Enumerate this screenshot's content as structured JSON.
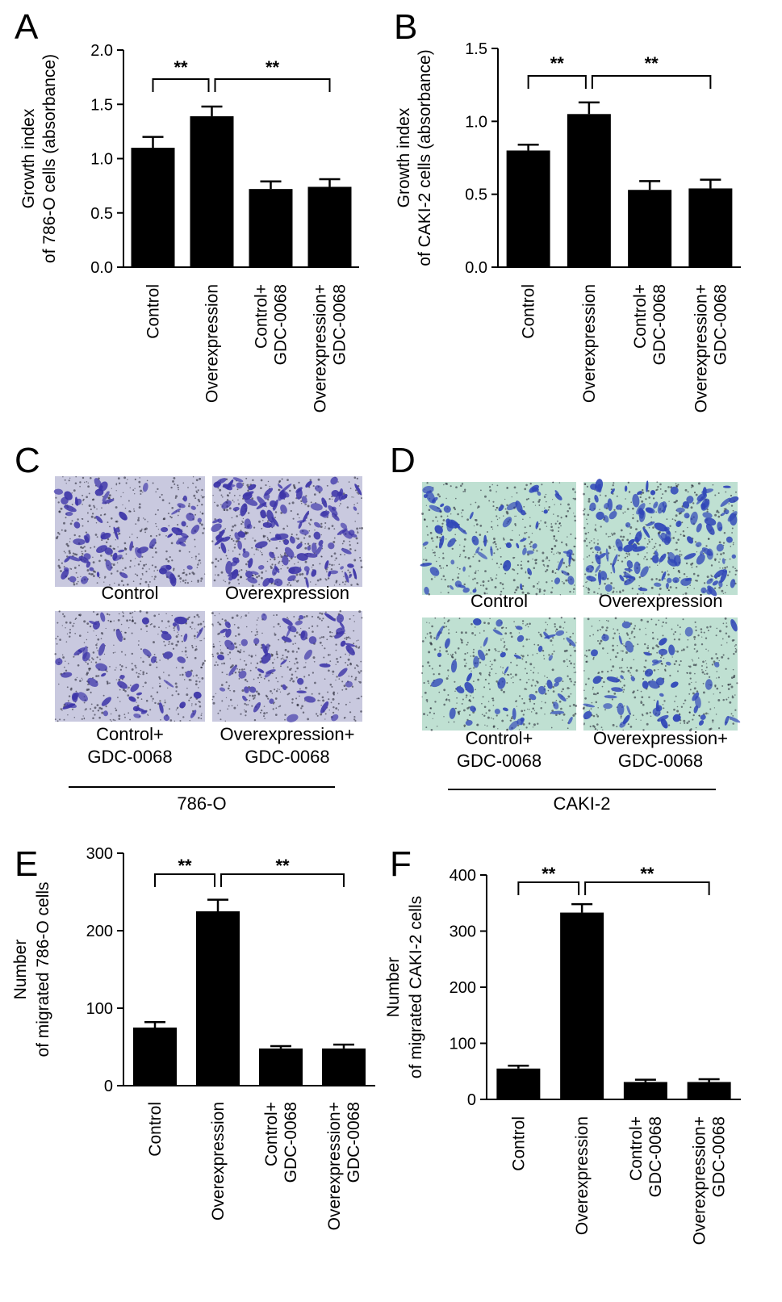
{
  "colors": {
    "bar": "#000000",
    "micro_786O_bg": "#c9c9df",
    "micro_786O_stain": "#3d35a8",
    "micro_CAKI2_bg": "#bfe0d2",
    "micro_CAKI2_stain": "#2f46b8",
    "dots": "#1b1b2a"
  },
  "chart_data": [
    {
      "panel": "A",
      "type": "bar",
      "categories": [
        "Control",
        "Overexpression",
        "Control+\nGDC-0068",
        "Overexpression+\nGDC-0068"
      ],
      "values": [
        1.1,
        1.39,
        0.72,
        0.74
      ],
      "errors": [
        0.1,
        0.09,
        0.07,
        0.07
      ],
      "ylabel": [
        "Growth index",
        "of 786-O cells (absorbance)"
      ],
      "ylim": [
        0,
        2.0
      ],
      "yticks": [
        "0.0",
        "0.5",
        "1.0",
        "1.5",
        "2.0"
      ],
      "significance": [
        {
          "from": 0,
          "to": 1,
          "label": "**"
        },
        {
          "from": 1,
          "to": 3,
          "label": "**"
        }
      ]
    },
    {
      "panel": "B",
      "type": "bar",
      "categories": [
        "Control",
        "Overexpression",
        "Control+\nGDC-0068",
        "Overexpression+\nGDC-0068"
      ],
      "values": [
        0.8,
        1.05,
        0.53,
        0.54
      ],
      "errors": [
        0.04,
        0.08,
        0.06,
        0.06
      ],
      "ylabel": [
        "Growth index",
        "of CAKI-2 cells (absorbance)"
      ],
      "ylim": [
        0,
        1.5
      ],
      "yticks": [
        "0.0",
        "0.5",
        "1.0",
        "1.5"
      ],
      "significance": [
        {
          "from": 0,
          "to": 1,
          "label": "**"
        },
        {
          "from": 1,
          "to": 3,
          "label": "**"
        }
      ]
    },
    {
      "panel": "E",
      "type": "bar",
      "categories": [
        "Control",
        "Overexpression",
        "Control+\nGDC-0068",
        "Overexpression+\nGDC-0068"
      ],
      "values": [
        75,
        225,
        48,
        48
      ],
      "errors": [
        7,
        15,
        3,
        5
      ],
      "ylabel": [
        "Number",
        "of migrated 786-O cells"
      ],
      "ylim": [
        0,
        300
      ],
      "yticks": [
        "0",
        "100",
        "200",
        "300"
      ],
      "significance": [
        {
          "from": 0,
          "to": 1,
          "label": "**"
        },
        {
          "from": 1,
          "to": 3,
          "label": "**"
        }
      ]
    },
    {
      "panel": "F",
      "type": "bar",
      "categories": [
        "Control",
        "Overexpression",
        "Control+\nGDC-0068",
        "Overexpression+\nGDC-0068"
      ],
      "values": [
        55,
        333,
        31,
        31
      ],
      "errors": [
        5,
        15,
        4,
        5
      ],
      "ylabel": [
        "Number",
        "of migrated CAKI-2 cells"
      ],
      "ylim": [
        0,
        400
      ],
      "yticks": [
        "0",
        "100",
        "200",
        "300",
        "400"
      ],
      "significance": [
        {
          "from": 0,
          "to": 1,
          "label": "**"
        },
        {
          "from": 1,
          "to": 3,
          "label": "**"
        }
      ]
    }
  ],
  "micrographs": [
    {
      "panel": "C",
      "cell_line": "786-O",
      "labels": [
        "Control",
        "Overexpression",
        "Control+\nGDC-0068",
        "Overexpression+\nGDC-0068"
      ],
      "density": [
        0.45,
        1.0,
        0.28,
        0.3
      ]
    },
    {
      "panel": "D",
      "cell_line": "CAKI-2",
      "labels": [
        "Control",
        "Overexpression",
        "Control+\nGDC-0068",
        "Overexpression+\nGDC-0068"
      ],
      "density": [
        0.4,
        1.0,
        0.25,
        0.27
      ]
    }
  ]
}
